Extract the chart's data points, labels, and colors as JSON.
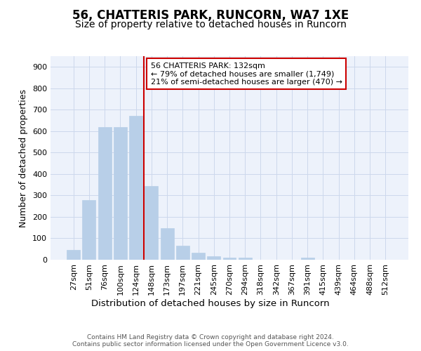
{
  "title": "56, CHATTERIS PARK, RUNCORN, WA7 1XE",
  "subtitle": "Size of property relative to detached houses in Runcorn",
  "xlabel": "Distribution of detached houses by size in Runcorn",
  "ylabel": "Number of detached properties",
  "categories": [
    "27sqm",
    "51sqm",
    "76sqm",
    "100sqm",
    "124sqm",
    "148sqm",
    "173sqm",
    "197sqm",
    "221sqm",
    "245sqm",
    "270sqm",
    "294sqm",
    "318sqm",
    "342sqm",
    "367sqm",
    "391sqm",
    "415sqm",
    "439sqm",
    "464sqm",
    "488sqm",
    "512sqm"
  ],
  "values": [
    45,
    280,
    620,
    620,
    670,
    345,
    148,
    65,
    33,
    16,
    11,
    11,
    0,
    0,
    0,
    10,
    0,
    0,
    0,
    0,
    0
  ],
  "bar_color": "#b8cfe8",
  "bar_edgecolor": "#b8cfe8",
  "vline_color": "#cc0000",
  "annotation_text": "56 CHATTERIS PARK: 132sqm\n← 79% of detached houses are smaller (1,749)\n21% of semi-detached houses are larger (470) →",
  "annotation_box_edgecolor": "#cc0000",
  "ylim": [
    0,
    950
  ],
  "yticks": [
    0,
    100,
    200,
    300,
    400,
    500,
    600,
    700,
    800,
    900
  ],
  "title_fontsize": 12,
  "subtitle_fontsize": 10,
  "xlabel_fontsize": 9.5,
  "ylabel_fontsize": 9,
  "tick_fontsize": 8,
  "ann_fontsize": 8,
  "footer_text": "Contains HM Land Registry data © Crown copyright and database right 2024.\nContains public sector information licensed under the Open Government Licence v3.0.",
  "background_color": "#ffffff",
  "grid_color": "#ccd8ec",
  "axes_bg_color": "#edf2fb"
}
